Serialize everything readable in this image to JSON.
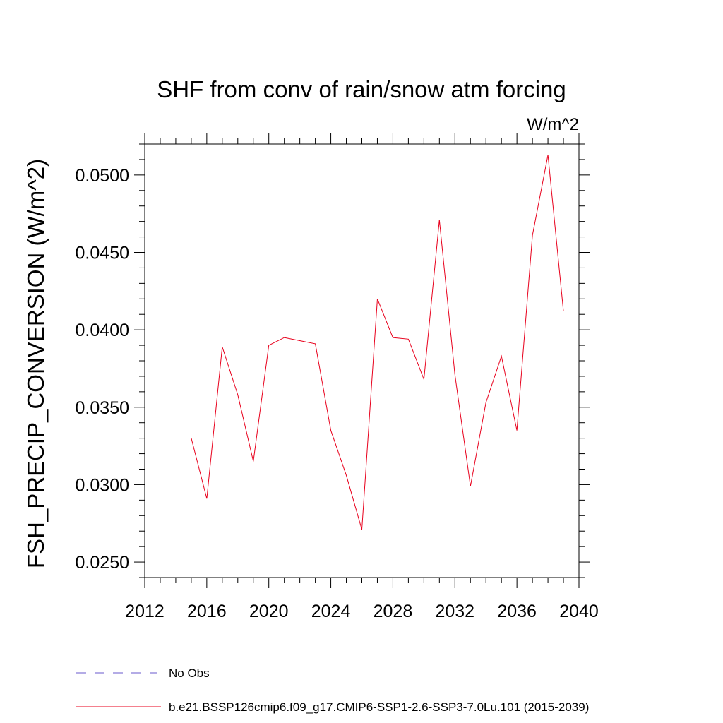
{
  "chart_data": {
    "type": "line",
    "title": "SHF from conv of rain/snow atm forcing",
    "units_label": "W/m^2",
    "ylabel": "FSH_PRECIP_CONVERSION  (W/m^2)",
    "xlabel": "",
    "xlim": [
      2012,
      2040
    ],
    "ylim": [
      0.024,
      0.052
    ],
    "x_ticks": [
      2012,
      2016,
      2020,
      2024,
      2028,
      2032,
      2036,
      2040
    ],
    "x_tick_labels": [
      "2012",
      "2016",
      "2020",
      "2024",
      "2028",
      "2032",
      "2036",
      "2040"
    ],
    "y_ticks": [
      0.025,
      0.03,
      0.035,
      0.04,
      0.045,
      0.05
    ],
    "y_tick_labels": [
      "0.0250",
      "0.0300",
      "0.0350",
      "0.0400",
      "0.0450",
      "0.0500"
    ],
    "grid": false,
    "series": [
      {
        "name": "b.e21.BSSP126cmip6.f09_g17.CMIP6-SSP1-2.6-SSP3-7.0Lu.101 (2015-2039)",
        "color": "#e8001c",
        "x": [
          2015,
          2016,
          2017,
          2018,
          2019,
          2020,
          2021,
          2022,
          2023,
          2024,
          2025,
          2026,
          2027,
          2028,
          2029,
          2030,
          2031,
          2032,
          2033,
          2034,
          2035,
          2036,
          2037,
          2038,
          2039
        ],
        "y": [
          0.033,
          0.0291,
          0.0389,
          0.0358,
          0.0315,
          0.039,
          0.0395,
          0.0393,
          0.0391,
          0.0335,
          0.0306,
          0.0271,
          0.042,
          0.0395,
          0.0394,
          0.0368,
          0.0471,
          0.0371,
          0.0299,
          0.0353,
          0.0383,
          0.0335,
          0.0461,
          0.0513,
          0.0412
        ]
      }
    ],
    "legend": {
      "placement": "bottom",
      "entries": [
        {
          "label": "No Obs",
          "color": "#6a5acd",
          "style": "dashed"
        },
        {
          "label": "b.e21.BSSP126cmip6.f09_g17.CMIP6-SSP1-2.6-SSP3-7.0Lu.101 (2015-2039)",
          "color": "#e8001c",
          "style": "solid"
        }
      ]
    }
  }
}
